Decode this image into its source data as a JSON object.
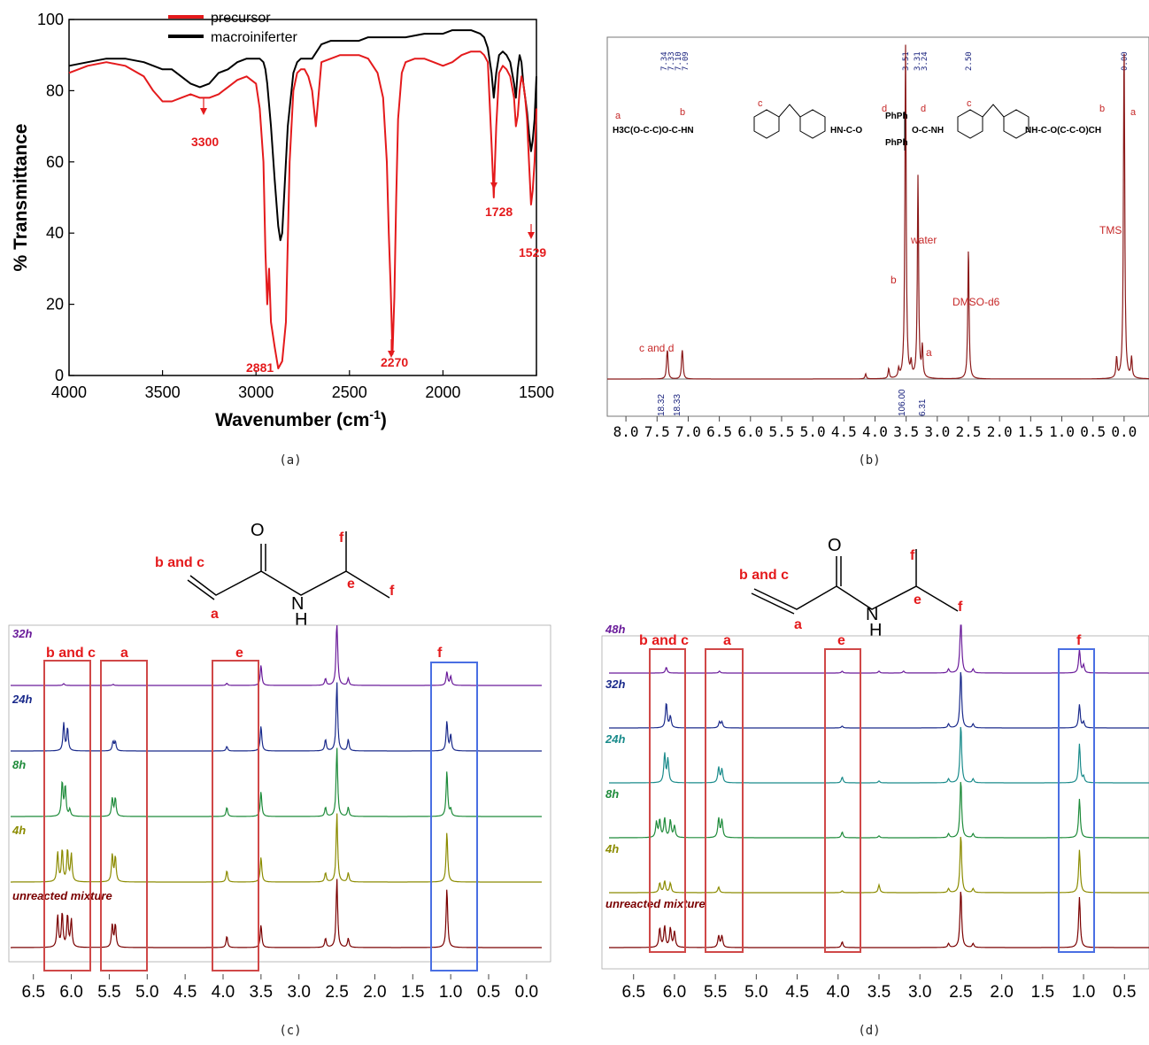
{
  "panels": {
    "a": {
      "caption": "(a)",
      "peak_labels": [
        "3300",
        "2881",
        "2270",
        "1728",
        "1529"
      ]
    },
    "b": {
      "caption": "(b)",
      "top_shift_labels": [
        [
          "7.34",
          "7.33",
          "7.10",
          "7.09"
        ],
        [
          "3.51"
        ],
        [
          "3.31",
          "3.24"
        ],
        [
          "2.50"
        ],
        [
          "0.00"
        ]
      ],
      "peak_labels": [
        "c and d",
        "b",
        "water",
        "a",
        "DMSO-d6",
        "TMS"
      ],
      "integrals": [
        "18.32",
        "18.33",
        "106.00",
        "6.31"
      ],
      "structure_letters": [
        "a",
        "b",
        "c",
        "d",
        "d",
        "c",
        "b",
        "a"
      ],
      "structure_fragments": [
        "H3C(O-C-C)O-C-HN",
        "HN-C-O",
        "PhPh",
        "PhPh",
        "O-C-NH",
        "NH-C-O(C-C-O)CH"
      ]
    },
    "c": {
      "caption": "(c)",
      "molecule_labels": {
        "bc": "b and c",
        "a": "a",
        "e": "e",
        "f1": "f",
        "f2": "f",
        "O": "O",
        "NH": "N",
        "H": "H"
      },
      "box_labels": [
        "b and c",
        "a",
        "e",
        "f"
      ],
      "trace_labels": [
        "32h",
        "24h",
        "8h",
        "4h",
        "unreacted mixture"
      ]
    },
    "d": {
      "caption": "(d)",
      "molecule_labels": {
        "bc": "b and c",
        "a": "a",
        "e": "e",
        "f1": "f",
        "f2": "f",
        "O": "O",
        "NH": "N",
        "H": "H"
      },
      "box_labels": [
        "b and c",
        "a",
        "e",
        "f"
      ],
      "trace_labels": [
        "48h",
        "32h",
        "24h",
        "8h",
        "4h",
        "unreacted mixture"
      ]
    }
  },
  "colors": {
    "precursor": "#e41a1c",
    "macroiniferter": "#000000",
    "nmr_b": "#8b1a1a",
    "annot_red": "#e41a1c",
    "box_blue": "#4a6fe3",
    "trace_32h": "#6a1b9a",
    "trace_24h": "#1a2a8b",
    "trace_8h": "#1e8b3a",
    "trace_4h": "#8b8b00",
    "trace_unreacted": "#7a0000",
    "trace_24h_d": "#1a8b8b"
  },
  "chart_data": [
    {
      "type": "line",
      "panel": "a",
      "xlabel": "Wavenumber (cm-1)",
      "ylabel": "% Transmittance",
      "xlim": [
        4000,
        1500
      ],
      "ylim": [
        0,
        100
      ],
      "xticks": [
        4000,
        3500,
        3000,
        2500,
        2000,
        1500
      ],
      "yticks": [
        0,
        20,
        40,
        60,
        80,
        100
      ],
      "legend_position": "top-center",
      "series": [
        {
          "name": "precursor",
          "x": [
            4000,
            3900,
            3800,
            3700,
            3600,
            3550,
            3500,
            3450,
            3400,
            3350,
            3300,
            3250,
            3200,
            3150,
            3100,
            3050,
            3000,
            2980,
            2960,
            2950,
            2940,
            2930,
            2920,
            2900,
            2881,
            2860,
            2840,
            2820,
            2800,
            2780,
            2760,
            2740,
            2720,
            2700,
            2680,
            2650,
            2600,
            2550,
            2500,
            2450,
            2400,
            2350,
            2320,
            2300,
            2290,
            2280,
            2270,
            2260,
            2250,
            2240,
            2220,
            2200,
            2150,
            2100,
            2050,
            2000,
            1950,
            1900,
            1850,
            1800,
            1780,
            1760,
            1740,
            1728,
            1715,
            1700,
            1680,
            1660,
            1640,
            1620,
            1610,
            1600,
            1590,
            1580,
            1570,
            1560,
            1550,
            1540,
            1529,
            1520,
            1510,
            1500
          ],
          "y": [
            85,
            87,
            88,
            87,
            84,
            80,
            77,
            77,
            78,
            79,
            78,
            78,
            79,
            81,
            83,
            84,
            82,
            75,
            60,
            35,
            20,
            30,
            15,
            8,
            2,
            4,
            15,
            60,
            80,
            85,
            86,
            86,
            84,
            80,
            70,
            88,
            89,
            90,
            90,
            90,
            89,
            85,
            78,
            60,
            40,
            25,
            6,
            22,
            50,
            72,
            85,
            88,
            89,
            89,
            88,
            87,
            88,
            90,
            91,
            91,
            90,
            88,
            65,
            50,
            70,
            85,
            87,
            86,
            84,
            78,
            70,
            73,
            80,
            84,
            82,
            78,
            72,
            60,
            48,
            52,
            60,
            75
          ]
        },
        {
          "name": "macroiniferter",
          "x": [
            4000,
            3900,
            3800,
            3700,
            3600,
            3500,
            3450,
            3400,
            3350,
            3300,
            3250,
            3200,
            3150,
            3100,
            3050,
            3000,
            2980,
            2960,
            2950,
            2940,
            2920,
            2900,
            2881,
            2870,
            2860,
            2850,
            2830,
            2800,
            2780,
            2760,
            2740,
            2720,
            2700,
            2650,
            2600,
            2550,
            2500,
            2450,
            2400,
            2300,
            2200,
            2100,
            2000,
            1950,
            1900,
            1850,
            1800,
            1780,
            1760,
            1740,
            1728,
            1715,
            1700,
            1680,
            1660,
            1640,
            1620,
            1610,
            1600,
            1590,
            1580,
            1570,
            1560,
            1550,
            1540,
            1529,
            1520,
            1510,
            1500
          ],
          "y": [
            87,
            88,
            89,
            89,
            88,
            86,
            86,
            84,
            82,
            81,
            82,
            85,
            86,
            88,
            89,
            89,
            89,
            88,
            86,
            82,
            70,
            55,
            42,
            38,
            40,
            50,
            70,
            85,
            88,
            89,
            89,
            89,
            89,
            93,
            94,
            94,
            94,
            94,
            95,
            95,
            95,
            96,
            96,
            97,
            97,
            97,
            96,
            95,
            92,
            85,
            78,
            85,
            90,
            91,
            90,
            88,
            82,
            78,
            86,
            90,
            88,
            82,
            78,
            74,
            68,
            63,
            66,
            72,
            84
          ]
        }
      ]
    },
    {
      "type": "line",
      "panel": "b",
      "xlabel": "",
      "xlim": [
        8.3,
        -0.4
      ],
      "xticks": [
        8.0,
        7.5,
        7.0,
        6.5,
        6.0,
        5.5,
        5.0,
        4.5,
        4.0,
        3.5,
        3.0,
        2.5,
        2.0,
        1.5,
        1.0,
        0.5,
        0.0
      ],
      "peaks": [
        {
          "shift": 7.34,
          "height": 5
        },
        {
          "shift": 7.33,
          "height": 5
        },
        {
          "shift": 7.1,
          "height": 5
        },
        {
          "shift": 7.09,
          "height": 5
        },
        {
          "shift": 4.15,
          "height": 1.5
        },
        {
          "shift": 3.78,
          "height": 3
        },
        {
          "shift": 3.62,
          "height": 2.5
        },
        {
          "shift": 3.51,
          "height": 100
        },
        {
          "shift": 3.42,
          "height": 4
        },
        {
          "shift": 3.31,
          "height": 60
        },
        {
          "shift": 3.24,
          "height": 9
        },
        {
          "shift": 2.5,
          "height": 39
        },
        {
          "shift": 0.12,
          "height": 6
        },
        {
          "shift": 0.0,
          "height": 100
        },
        {
          "shift": -0.12,
          "height": 6
        }
      ]
    },
    {
      "type": "line",
      "panel": "c",
      "xlabel": "",
      "xlim": [
        6.8,
        -0.2
      ],
      "xticks": [
        6.5,
        6.0,
        5.5,
        5.0,
        4.5,
        4.0,
        3.5,
        3.0,
        2.5,
        2.0,
        1.5,
        1.0,
        0.5,
        0.0
      ],
      "traces": [
        {
          "name": "32h",
          "peaks": [
            [
              6.1,
              0.08
            ],
            [
              5.45,
              0.05
            ],
            [
              3.95,
              0.1
            ],
            [
              3.5,
              0.9
            ],
            [
              2.65,
              0.3
            ],
            [
              2.5,
              3.0
            ],
            [
              2.35,
              0.3
            ],
            [
              1.05,
              0.6
            ],
            [
              1.0,
              0.4
            ]
          ]
        },
        {
          "name": "24h",
          "peaks": [
            [
              6.1,
              1.2
            ],
            [
              6.05,
              1.0
            ],
            [
              5.45,
              0.4
            ],
            [
              5.42,
              0.4
            ],
            [
              3.95,
              0.2
            ],
            [
              3.5,
              1.1
            ],
            [
              2.65,
              0.5
            ],
            [
              2.5,
              3.0
            ],
            [
              2.35,
              0.5
            ],
            [
              1.05,
              1.3
            ],
            [
              1.0,
              0.7
            ]
          ]
        },
        {
          "name": "8h",
          "peaks": [
            [
              6.12,
              1.5
            ],
            [
              6.08,
              1.3
            ],
            [
              6.02,
              0.3
            ],
            [
              5.46,
              0.8
            ],
            [
              5.42,
              0.8
            ],
            [
              3.95,
              0.4
            ],
            [
              3.5,
              1.1
            ],
            [
              2.65,
              0.4
            ],
            [
              2.5,
              3.0
            ],
            [
              2.35,
              0.4
            ],
            [
              1.05,
              2.0
            ],
            [
              1.0,
              0.3
            ]
          ]
        },
        {
          "name": "4h",
          "peaks": [
            [
              6.18,
              1.3
            ],
            [
              6.12,
              1.4
            ],
            [
              6.05,
              1.4
            ],
            [
              6.0,
              1.2
            ],
            [
              5.46,
              1.2
            ],
            [
              5.42,
              1.1
            ],
            [
              3.95,
              0.5
            ],
            [
              3.5,
              1.1
            ],
            [
              2.65,
              0.4
            ],
            [
              2.5,
              3.0
            ],
            [
              2.35,
              0.4
            ],
            [
              1.05,
              2.2
            ]
          ]
        },
        {
          "name": "unreacted mixture",
          "peaks": [
            [
              6.18,
              1.4
            ],
            [
              6.12,
              1.5
            ],
            [
              6.05,
              1.4
            ],
            [
              6.0,
              1.2
            ],
            [
              5.46,
              1.0
            ],
            [
              5.42,
              1.0
            ],
            [
              3.95,
              0.5
            ],
            [
              3.5,
              1.0
            ],
            [
              2.65,
              0.4
            ],
            [
              2.5,
              3.0
            ],
            [
              2.35,
              0.4
            ],
            [
              1.05,
              2.6
            ]
          ]
        }
      ]
    },
    {
      "type": "line",
      "panel": "d",
      "xlabel": "",
      "xlim": [
        6.8,
        0.2
      ],
      "xticks": [
        6.5,
        6.0,
        5.5,
        5.0,
        4.5,
        4.0,
        3.5,
        3.0,
        2.5,
        2.0,
        1.5,
        1.0,
        0.5
      ],
      "traces": [
        {
          "name": "48h",
          "peaks": [
            [
              6.1,
              0.3
            ],
            [
              5.45,
              0.1
            ],
            [
              3.95,
              0.1
            ],
            [
              3.5,
              0.1
            ],
            [
              3.2,
              0.1
            ],
            [
              2.65,
              0.2
            ],
            [
              2.5,
              3.0
            ],
            [
              2.35,
              0.2
            ],
            [
              1.05,
              1.2
            ],
            [
              1.0,
              0.4
            ]
          ]
        },
        {
          "name": "32h",
          "peaks": [
            [
              6.1,
              1.3
            ],
            [
              6.05,
              0.6
            ],
            [
              5.45,
              0.3
            ],
            [
              5.42,
              0.3
            ],
            [
              3.95,
              0.1
            ],
            [
              2.65,
              0.2
            ],
            [
              2.5,
              3.0
            ],
            [
              2.35,
              0.2
            ],
            [
              1.05,
              1.2
            ],
            [
              1.0,
              0.3
            ]
          ]
        },
        {
          "name": "24h",
          "peaks": [
            [
              6.12,
              1.5
            ],
            [
              6.08,
              1.2
            ],
            [
              5.46,
              0.8
            ],
            [
              5.42,
              0.7
            ],
            [
              3.95,
              0.3
            ],
            [
              3.5,
              0.1
            ],
            [
              2.65,
              0.2
            ],
            [
              2.5,
              3.0
            ],
            [
              2.35,
              0.2
            ],
            [
              1.05,
              2.0
            ],
            [
              1.0,
              0.3
            ]
          ]
        },
        {
          "name": "8h",
          "peaks": [
            [
              6.22,
              0.8
            ],
            [
              6.18,
              0.9
            ],
            [
              6.12,
              1.0
            ],
            [
              6.05,
              0.9
            ],
            [
              6.0,
              0.6
            ],
            [
              5.46,
              1.0
            ],
            [
              5.42,
              0.9
            ],
            [
              3.95,
              0.3
            ],
            [
              3.5,
              0.1
            ],
            [
              2.65,
              0.2
            ],
            [
              2.5,
              3.0
            ],
            [
              2.35,
              0.2
            ],
            [
              1.05,
              2.0
            ]
          ]
        },
        {
          "name": "4h",
          "peaks": [
            [
              6.18,
              0.5
            ],
            [
              6.12,
              0.6
            ],
            [
              6.05,
              0.5
            ],
            [
              5.46,
              0.3
            ],
            [
              3.95,
              0.1
            ],
            [
              3.5,
              0.4
            ],
            [
              2.65,
              0.2
            ],
            [
              2.5,
              3.0
            ],
            [
              2.35,
              0.2
            ],
            [
              1.05,
              2.2
            ]
          ]
        },
        {
          "name": "unreacted mixture",
          "peaks": [
            [
              6.18,
              1.0
            ],
            [
              6.12,
              1.1
            ],
            [
              6.05,
              1.0
            ],
            [
              6.0,
              0.8
            ],
            [
              5.46,
              0.6
            ],
            [
              5.42,
              0.6
            ],
            [
              3.95,
              0.3
            ],
            [
              2.65,
              0.2
            ],
            [
              2.5,
              3.0
            ],
            [
              2.35,
              0.2
            ],
            [
              1.05,
              2.6
            ]
          ]
        }
      ]
    }
  ]
}
